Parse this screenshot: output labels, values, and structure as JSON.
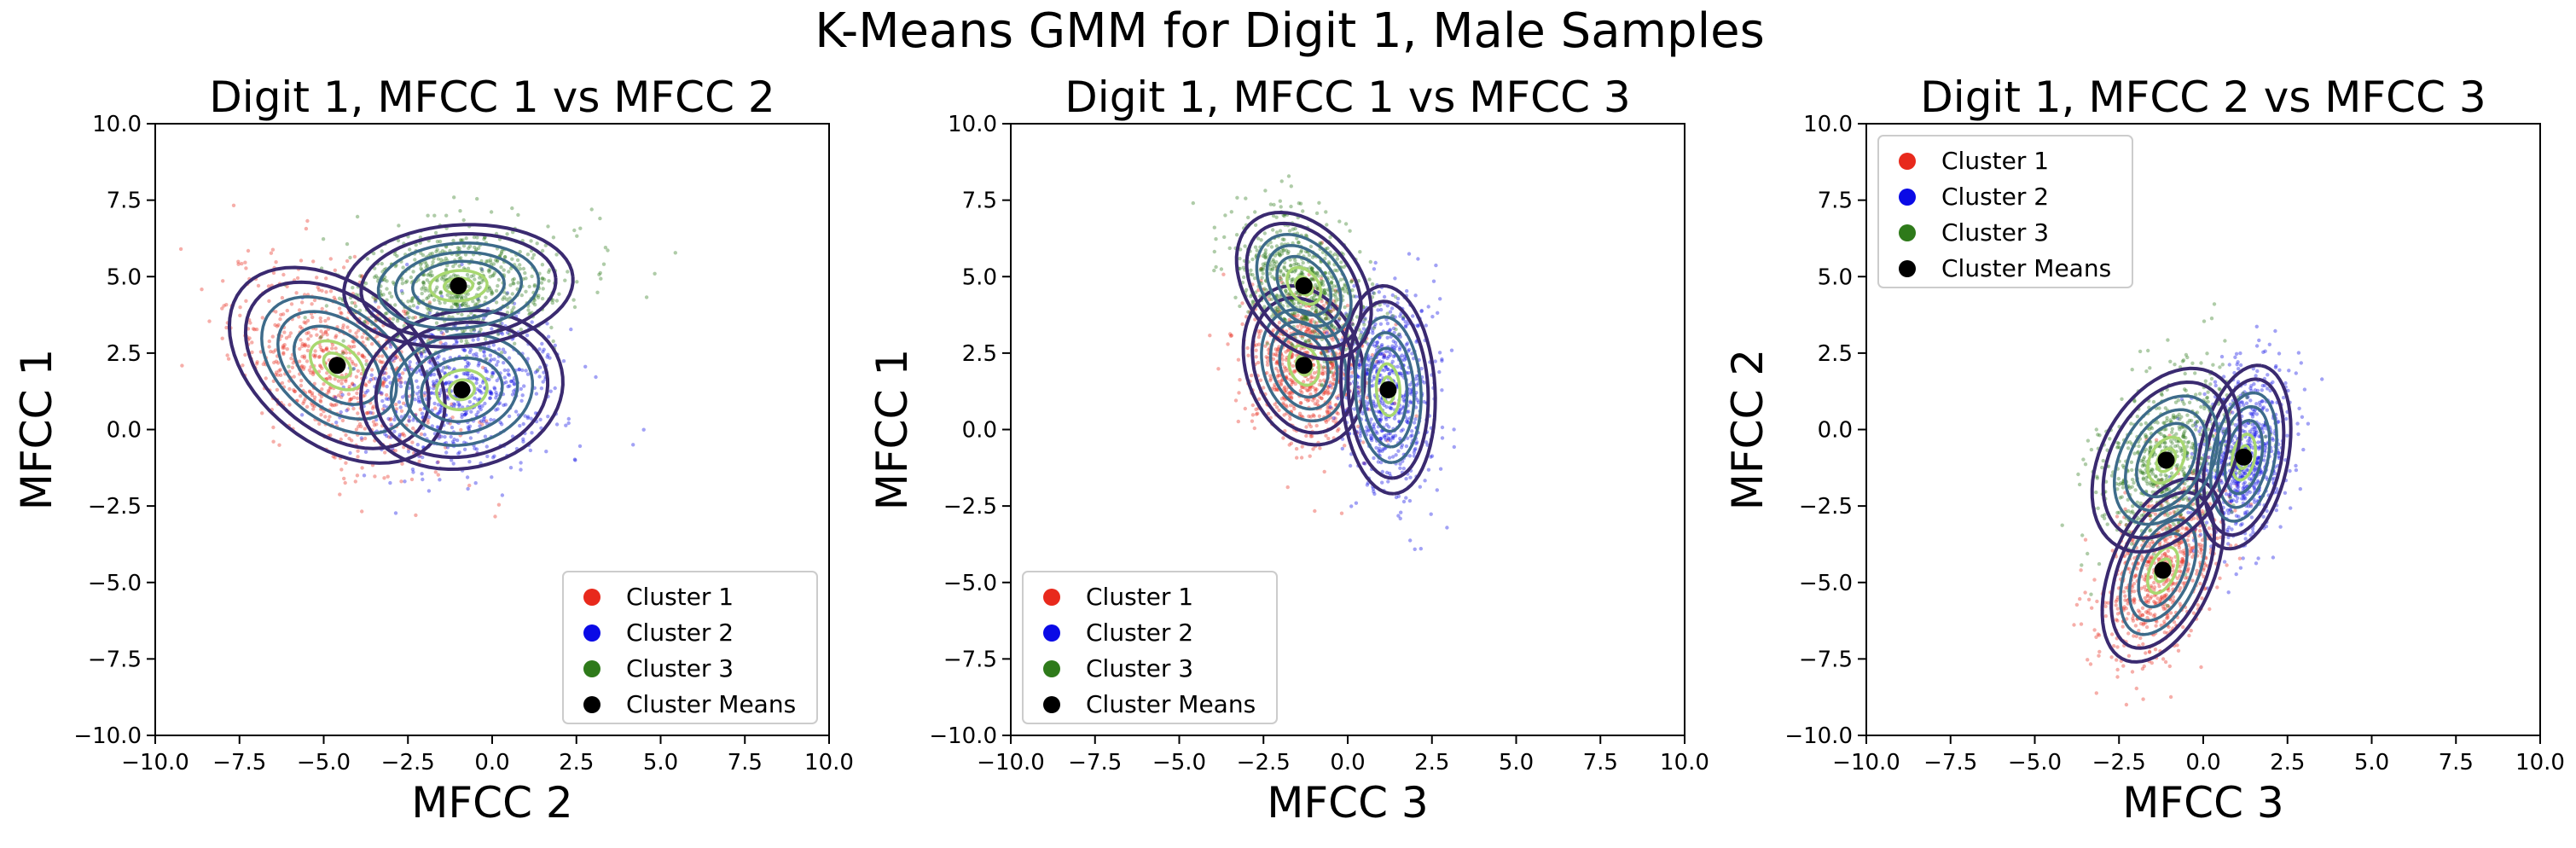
{
  "figure": {
    "suptitle": "K-Means GMM for Digit 1, Male Samples",
    "colors": {
      "cluster1": "#e8291c",
      "cluster2": "#0a0ae6",
      "cluster3": "#2e7a1a",
      "means": "#000000",
      "contour_outer": "#3a2a70",
      "contour_mid": "#3d6b8a",
      "contour_inner": "#a8d870"
    }
  },
  "chart_data": [
    {
      "type": "scatter",
      "title": "Digit 1, MFCC 1 vs MFCC 2",
      "xlabel": "MFCC 2",
      "ylabel": "MFCC 1",
      "xlim": [
        -10,
        10
      ],
      "ylim": [
        -10,
        10
      ],
      "xticks": [
        "−10.0",
        "−7.5",
        "−5.0",
        "−2.5",
        "0.0",
        "2.5",
        "5.0",
        "7.5",
        "10.0"
      ],
      "yticks": [
        "−10.0",
        "−7.5",
        "−5.0",
        "−2.5",
        "0.0",
        "2.5",
        "5.0",
        "7.5",
        "10.0"
      ],
      "grid": false,
      "legend_position": "lower-right",
      "legend": [
        "Cluster 1",
        "Cluster 2",
        "Cluster 3",
        "Cluster Means"
      ],
      "series": [
        {
          "name": "Cluster 1",
          "color": "#e8291c",
          "mean": [
            -4.6,
            2.1
          ],
          "std": [
            1.6,
            1.6
          ],
          "rho": -0.4
        },
        {
          "name": "Cluster 2",
          "color": "#0a0ae6",
          "mean": [
            -0.9,
            1.3
          ],
          "std": [
            1.5,
            1.3
          ],
          "rho": 0.1
        },
        {
          "name": "Cluster 3",
          "color": "#2e7a1a",
          "mean": [
            -1.0,
            4.7
          ],
          "std": [
            1.7,
            1.0
          ],
          "rho": 0.1
        }
      ],
      "means": [
        [
          -4.6,
          2.1
        ],
        [
          -0.9,
          1.3
        ],
        [
          -1.0,
          4.7
        ]
      ]
    },
    {
      "type": "scatter",
      "title": "Digit 1, MFCC 1 vs MFCC 3",
      "xlabel": "MFCC 3",
      "ylabel": "MFCC 1",
      "xlim": [
        -10,
        10
      ],
      "ylim": [
        -10,
        10
      ],
      "xticks": [
        "−10.0",
        "−7.5",
        "−5.0",
        "−2.5",
        "0.0",
        "2.5",
        "5.0",
        "7.5",
        "10.0"
      ],
      "yticks": [
        "−10.0",
        "−7.5",
        "−5.0",
        "−2.5",
        "0.0",
        "2.5",
        "5.0",
        "7.5",
        "10.0"
      ],
      "grid": false,
      "legend_position": "lower-left",
      "legend": [
        "Cluster 1",
        "Cluster 2",
        "Cluster 3",
        "Cluster Means"
      ],
      "series": [
        {
          "name": "Cluster 1",
          "color": "#e8291c",
          "mean": [
            -1.3,
            2.1
          ],
          "std": [
            0.9,
            1.3
          ],
          "rho": -0.2
        },
        {
          "name": "Cluster 2",
          "color": "#0a0ae6",
          "mean": [
            1.2,
            1.3
          ],
          "std": [
            0.7,
            1.7
          ],
          "rho": -0.1
        },
        {
          "name": "Cluster 3",
          "color": "#2e7a1a",
          "mean": [
            -1.3,
            4.7
          ],
          "std": [
            1.0,
            1.2
          ],
          "rho": -0.35
        }
      ],
      "means": [
        [
          -1.3,
          2.1
        ],
        [
          1.2,
          1.3
        ],
        [
          -1.3,
          4.7
        ]
      ]
    },
    {
      "type": "scatter",
      "title": "Digit 1, MFCC 2 vs MFCC 3",
      "xlabel": "MFCC 3",
      "ylabel": "MFCC 2",
      "xlim": [
        -10,
        10
      ],
      "ylim": [
        -10,
        10
      ],
      "xticks": [
        "−10.0",
        "−7.5",
        "−5.0",
        "−2.5",
        "0.0",
        "2.5",
        "5.0",
        "7.5",
        "10.0"
      ],
      "yticks": [
        "−10.0",
        "−7.5",
        "−5.0",
        "−2.5",
        "0.0",
        "2.5",
        "5.0",
        "7.5",
        "10.0"
      ],
      "grid": false,
      "legend_position": "upper-left",
      "legend": [
        "Cluster 1",
        "Cluster 2",
        "Cluster 3",
        "Cluster Means"
      ],
      "series": [
        {
          "name": "Cluster 1",
          "color": "#e8291c",
          "mean": [
            -1.2,
            -4.6
          ],
          "std": [
            0.9,
            1.5
          ],
          "rho": 0.45
        },
        {
          "name": "Cluster 2",
          "color": "#0a0ae6",
          "mean": [
            1.2,
            -0.9
          ],
          "std": [
            0.7,
            1.5
          ],
          "rho": 0.3
        },
        {
          "name": "Cluster 3",
          "color": "#2e7a1a",
          "mean": [
            -1.1,
            -1.0
          ],
          "std": [
            1.1,
            1.5
          ],
          "rho": 0.35
        }
      ],
      "means": [
        [
          -1.2,
          -4.6
        ],
        [
          1.2,
          -0.9
        ],
        [
          -1.1,
          -1.0
        ]
      ]
    }
  ]
}
